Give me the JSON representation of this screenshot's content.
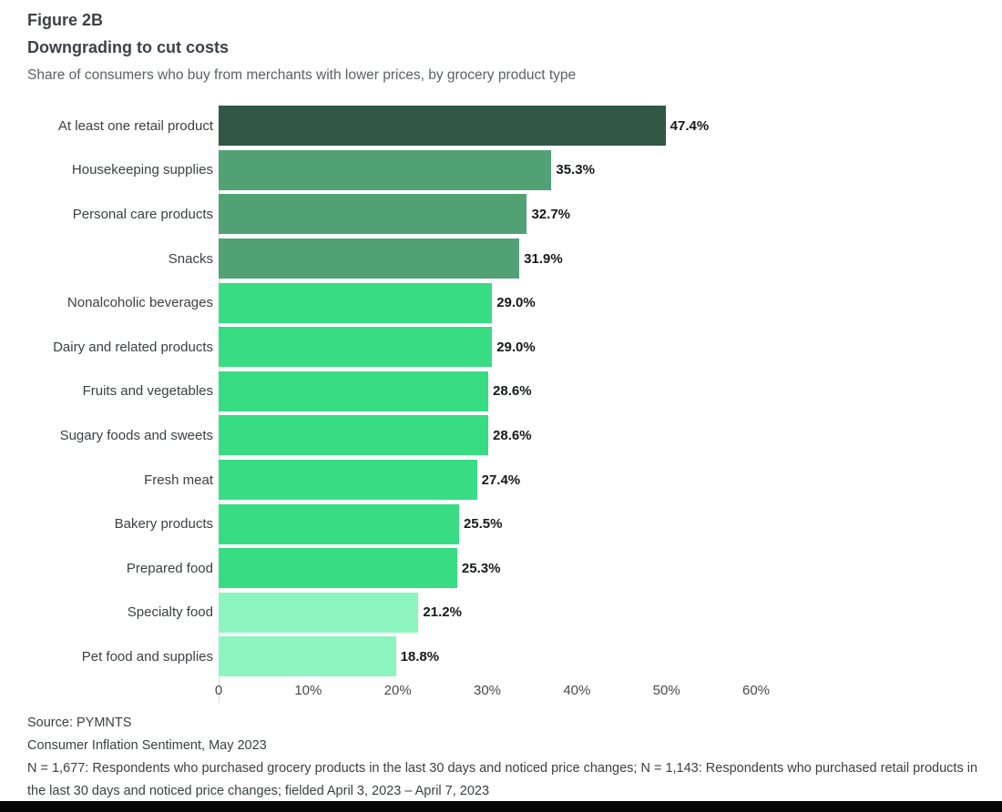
{
  "figure_label": "Figure 2B",
  "title": "Downgrading to cut costs",
  "subtitle": "Share of consumers who buy from merchants with lower prices, by grocery product type",
  "chart_data": {
    "type": "bar",
    "orientation": "horizontal",
    "title": "Downgrading to cut costs",
    "subtitle": "Share of consumers who buy from merchants with lower prices, by grocery product type",
    "categories": [
      "At least one retail product",
      "Housekeeping supplies",
      "Personal care products",
      "Snacks",
      "Nonalcoholic beverages",
      "Dairy and related products",
      "Fruits and vegetables",
      "Sugary foods and sweets",
      "Fresh meat",
      "Bakery products",
      "Prepared food",
      "Specialty food",
      "Pet food and supplies"
    ],
    "values": [
      47.4,
      35.3,
      32.7,
      31.9,
      29.0,
      29.0,
      28.6,
      28.6,
      27.4,
      25.5,
      25.3,
      21.2,
      18.8
    ],
    "value_labels": [
      "47.4%",
      "35.3%",
      "32.7%",
      "31.9%",
      "29.0%",
      "29.0%",
      "28.6%",
      "28.6%",
      "27.4%",
      "25.5%",
      "25.3%",
      "21.2%",
      "18.8%"
    ],
    "bar_colors": [
      "#315747",
      "#52a175",
      "#52a175",
      "#52a175",
      "#38dc83",
      "#38dc83",
      "#38dc83",
      "#38dc83",
      "#38dc83",
      "#38dc83",
      "#38dc83",
      "#8df5bf",
      "#8df5bf"
    ],
    "xlabel": "",
    "ylabel": "",
    "xlim": [
      0,
      60
    ],
    "x_ticks": [
      "0",
      "10%",
      "20%",
      "30%",
      "40%",
      "50%",
      "60%"
    ],
    "grid": false,
    "legend": "none"
  },
  "footer": {
    "source": "Source: PYMNTS",
    "publication": "Consumer Inflation Sentiment, May 2023",
    "methodology": "N = 1,677: Respondents who purchased grocery products in the last 30 days and noticed price changes; N = 1,143: Respondents who purchased retail products in the last 30 days and noticed price changes; fielded April 3, 2023 – April 7, 2023"
  },
  "colors": {
    "dark_green": "#315747",
    "medium_green": "#52a175",
    "bright_green": "#38dc83",
    "light_green": "#8df5bf",
    "axis_line": "#dcdcdc",
    "bottom_band": "#050505"
  }
}
